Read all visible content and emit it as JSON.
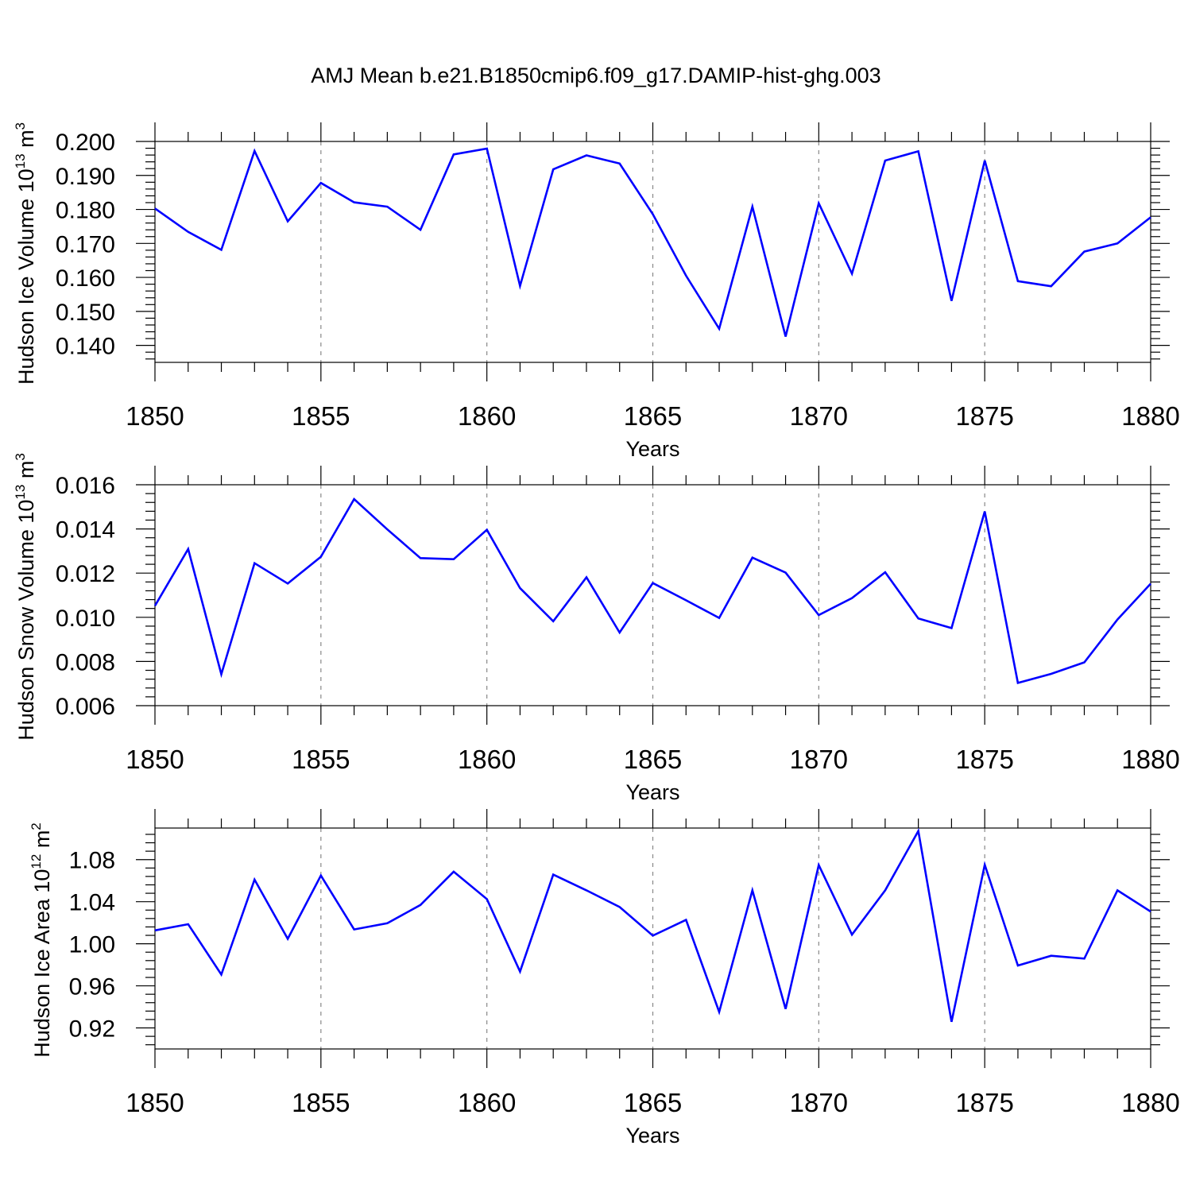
{
  "title": "AMJ Mean b.e21.B1850cmip6.f09_g17.DAMIP-hist-ghg.003",
  "chart_data": [
    {
      "type": "line",
      "xlabel": "Years",
      "ylabel": "Hudson Ice Volume 10",
      "ylabel_sup": "13",
      "ylabel_unit": " m",
      "ylabel_unit_sup": "3",
      "xlim": [
        1850,
        1880
      ],
      "ylim": [
        0.135,
        0.2
      ],
      "xticks": [
        "1850",
        "1855",
        "1860",
        "1865",
        "1870",
        "1875",
        "1880"
      ],
      "yticks": [
        "0.140",
        "0.150",
        "0.160",
        "0.170",
        "0.180",
        "0.190",
        "0.200"
      ],
      "grid": "dashed vertical at major x ticks",
      "color": "#0000ff",
      "x": [
        1850,
        1851,
        1852,
        1853,
        1854,
        1855,
        1856,
        1857,
        1858,
        1859,
        1860,
        1861,
        1862,
        1863,
        1864,
        1865,
        1866,
        1867,
        1868,
        1869,
        1870,
        1871,
        1872,
        1873,
        1874,
        1875,
        1876,
        1877,
        1878,
        1879,
        1880
      ],
      "values": [
        0.1803,
        0.1734,
        0.1681,
        0.1972,
        0.1765,
        0.1878,
        0.1821,
        0.1808,
        0.174,
        0.1962,
        0.1979,
        0.1575,
        0.1918,
        0.1959,
        0.1935,
        0.1786,
        0.1605,
        0.1449,
        0.1808,
        0.1426,
        0.1818,
        0.1611,
        0.1944,
        0.1971,
        0.1531,
        0.1944,
        0.1589,
        0.1574,
        0.1676,
        0.17,
        0.1777
      ]
    },
    {
      "type": "line",
      "xlabel": "Years",
      "ylabel": "Hudson Snow Volume 10",
      "ylabel_sup": "13",
      "ylabel_unit": " m",
      "ylabel_unit_sup": "3",
      "xlim": [
        1850,
        1880
      ],
      "ylim": [
        0.006,
        0.016
      ],
      "xticks": [
        "1850",
        "1855",
        "1860",
        "1865",
        "1870",
        "1875",
        "1880"
      ],
      "yticks": [
        "0.006",
        "0.008",
        "0.010",
        "0.012",
        "0.014",
        "0.016"
      ],
      "grid": "dashed vertical at major x ticks",
      "color": "#0000ff",
      "x": [
        1850,
        1851,
        1852,
        1853,
        1854,
        1855,
        1856,
        1857,
        1858,
        1859,
        1860,
        1861,
        1862,
        1863,
        1864,
        1865,
        1866,
        1867,
        1868,
        1869,
        1870,
        1871,
        1872,
        1873,
        1874,
        1875,
        1876,
        1877,
        1878,
        1879,
        1880
      ],
      "values": [
        0.01052,
        0.01309,
        0.00742,
        0.01245,
        0.01153,
        0.01274,
        0.01535,
        0.01398,
        0.01268,
        0.01263,
        0.01396,
        0.01132,
        0.00982,
        0.01181,
        0.00931,
        0.01155,
        0.01077,
        0.00997,
        0.0127,
        0.01202,
        0.0101,
        0.01087,
        0.01204,
        0.00995,
        0.00951,
        0.01479,
        0.00703,
        0.00744,
        0.00796,
        0.0099,
        0.01152
      ]
    },
    {
      "type": "line",
      "xlabel": "Years",
      "ylabel": "Hudson Ice Area 10",
      "ylabel_sup": "12",
      "ylabel_unit": " m",
      "ylabel_unit_sup": "2",
      "xlim": [
        1850,
        1880
      ],
      "ylim": [
        0.9,
        1.11
      ],
      "xticks": [
        "1850",
        "1855",
        "1860",
        "1865",
        "1870",
        "1875",
        "1880"
      ],
      "yticks": [
        "0.92",
        "0.96",
        "1.00",
        "1.04",
        "1.08"
      ],
      "grid": "dashed vertical at major x ticks",
      "color": "#0000ff",
      "x": [
        1850,
        1851,
        1852,
        1853,
        1854,
        1855,
        1856,
        1857,
        1858,
        1859,
        1860,
        1861,
        1862,
        1863,
        1864,
        1865,
        1866,
        1867,
        1868,
        1869,
        1870,
        1871,
        1872,
        1873,
        1874,
        1875,
        1876,
        1877,
        1878,
        1879,
        1880
      ],
      "values": [
        1.0127,
        1.0186,
        0.9707,
        1.061,
        1.0047,
        1.0648,
        1.0136,
        1.0195,
        1.0369,
        1.0685,
        1.0425,
        0.9736,
        1.0657,
        1.0508,
        1.035,
        1.0077,
        1.0227,
        0.9352,
        1.0508,
        0.9381,
        1.0748,
        1.0087,
        1.0508,
        1.1072,
        0.9258,
        1.0751,
        0.9793,
        0.9886,
        0.9859,
        1.0508,
        1.0306
      ]
    }
  ]
}
